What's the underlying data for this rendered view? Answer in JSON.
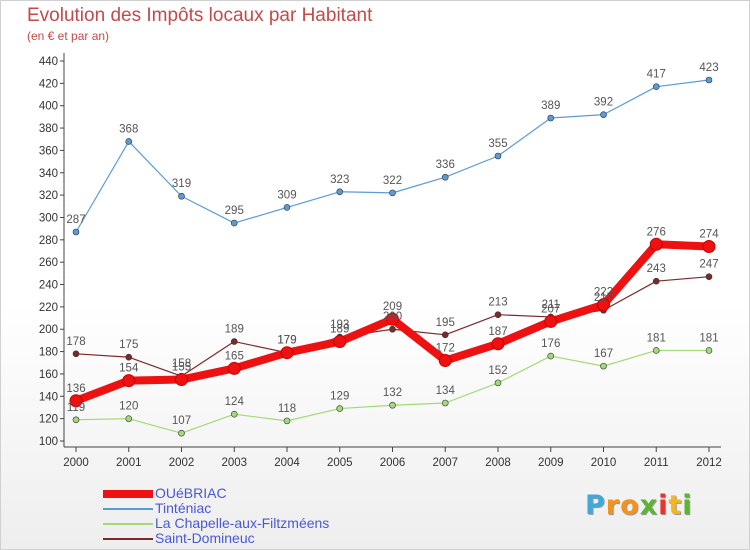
{
  "title": "Evolution des Impôts locaux par Habitant",
  "subtitle": "(en € et par an)",
  "logo": {
    "letters": [
      "P",
      "r",
      "o",
      "x",
      "i",
      "t",
      "i"
    ],
    "colors": [
      "#3fa9dc",
      "#f29320",
      "#f29320",
      "#5cb531",
      "#e3352b",
      "#f2b61f",
      "#5cb531"
    ]
  },
  "chart_data": {
    "type": "line",
    "title": "Evolution des Impôts locaux par Habitant",
    "subtitle": "(en € et par an)",
    "xlabel": "",
    "ylabel": "",
    "ylim": [
      100,
      440
    ],
    "yticks": [
      100,
      120,
      140,
      160,
      180,
      200,
      220,
      240,
      260,
      280,
      300,
      320,
      340,
      360,
      380,
      400,
      420,
      440
    ],
    "categories": [
      "2000",
      "2001",
      "2002",
      "2003",
      "2004",
      "2005",
      "2006",
      "2007",
      "2008",
      "2009",
      "2010",
      "2011",
      "2012"
    ],
    "grid": false,
    "legend_position": "bottom-left",
    "series": [
      {
        "name": "Tinténiac",
        "color": "#5b9bd5",
        "width": 1.2,
        "marker": 3,
        "values": [
          287,
          368,
          319,
          295,
          309,
          323,
          322,
          336,
          355,
          389,
          392,
          417,
          423
        ]
      },
      {
        "name": "La Chapelle-aux-Filtzméens",
        "color": "#a3d977",
        "width": 1.2,
        "marker": 3,
        "values": [
          119,
          120,
          107,
          124,
          118,
          129,
          132,
          134,
          152,
          176,
          167,
          181,
          181
        ]
      },
      {
        "name": "Saint-Domineuc",
        "color": "#7a2a2a",
        "width": 1.2,
        "marker": 3,
        "values": [
          178,
          175,
          158,
          189,
          179,
          193,
          200,
          195,
          213,
          211,
          217,
          243,
          247
        ]
      },
      {
        "name": "OUéBRIAC",
        "color": "#ee1111",
        "width": 8,
        "marker": 6,
        "values": [
          136,
          154,
          155,
          165,
          179,
          189,
          209,
          172,
          187,
          207,
          222,
          276,
          274
        ]
      }
    ],
    "legend_order": [
      "OUéBRIAC",
      "Tinténiac",
      "La Chapelle-aux-Filtzméens",
      "Saint-Domineuc"
    ]
  }
}
